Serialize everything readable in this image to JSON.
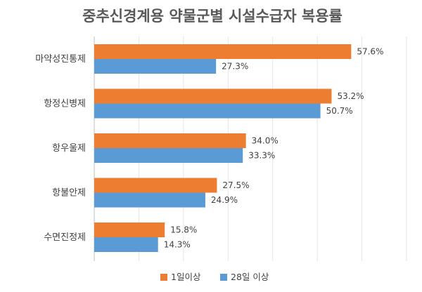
{
  "chart_data": {
    "type": "bar",
    "orientation": "horizontal",
    "title": "중추신경계용 약물군별 시설수급자 복용률",
    "categories": [
      "마약성진통제",
      "항정신병제",
      "항우울제",
      "항불안제",
      "수면진정제"
    ],
    "series": [
      {
        "name": "1일이상",
        "color": "#ED7D31",
        "values": [
          57.6,
          53.2,
          34.0,
          27.5,
          15.8
        ],
        "labels": [
          "57.6%",
          "53.2%",
          "34.0%",
          "27.5%",
          "15.8%"
        ]
      },
      {
        "name": "28일 이상",
        "color": "#5B9BD5",
        "values": [
          27.3,
          50.7,
          33.3,
          24.9,
          14.3
        ],
        "labels": [
          "27.3%",
          "50.7%",
          "33.3%",
          "24.9%",
          "14.3%"
        ]
      }
    ],
    "xlim": [
      0,
      70
    ],
    "grid": true,
    "legend_position": "bottom"
  }
}
